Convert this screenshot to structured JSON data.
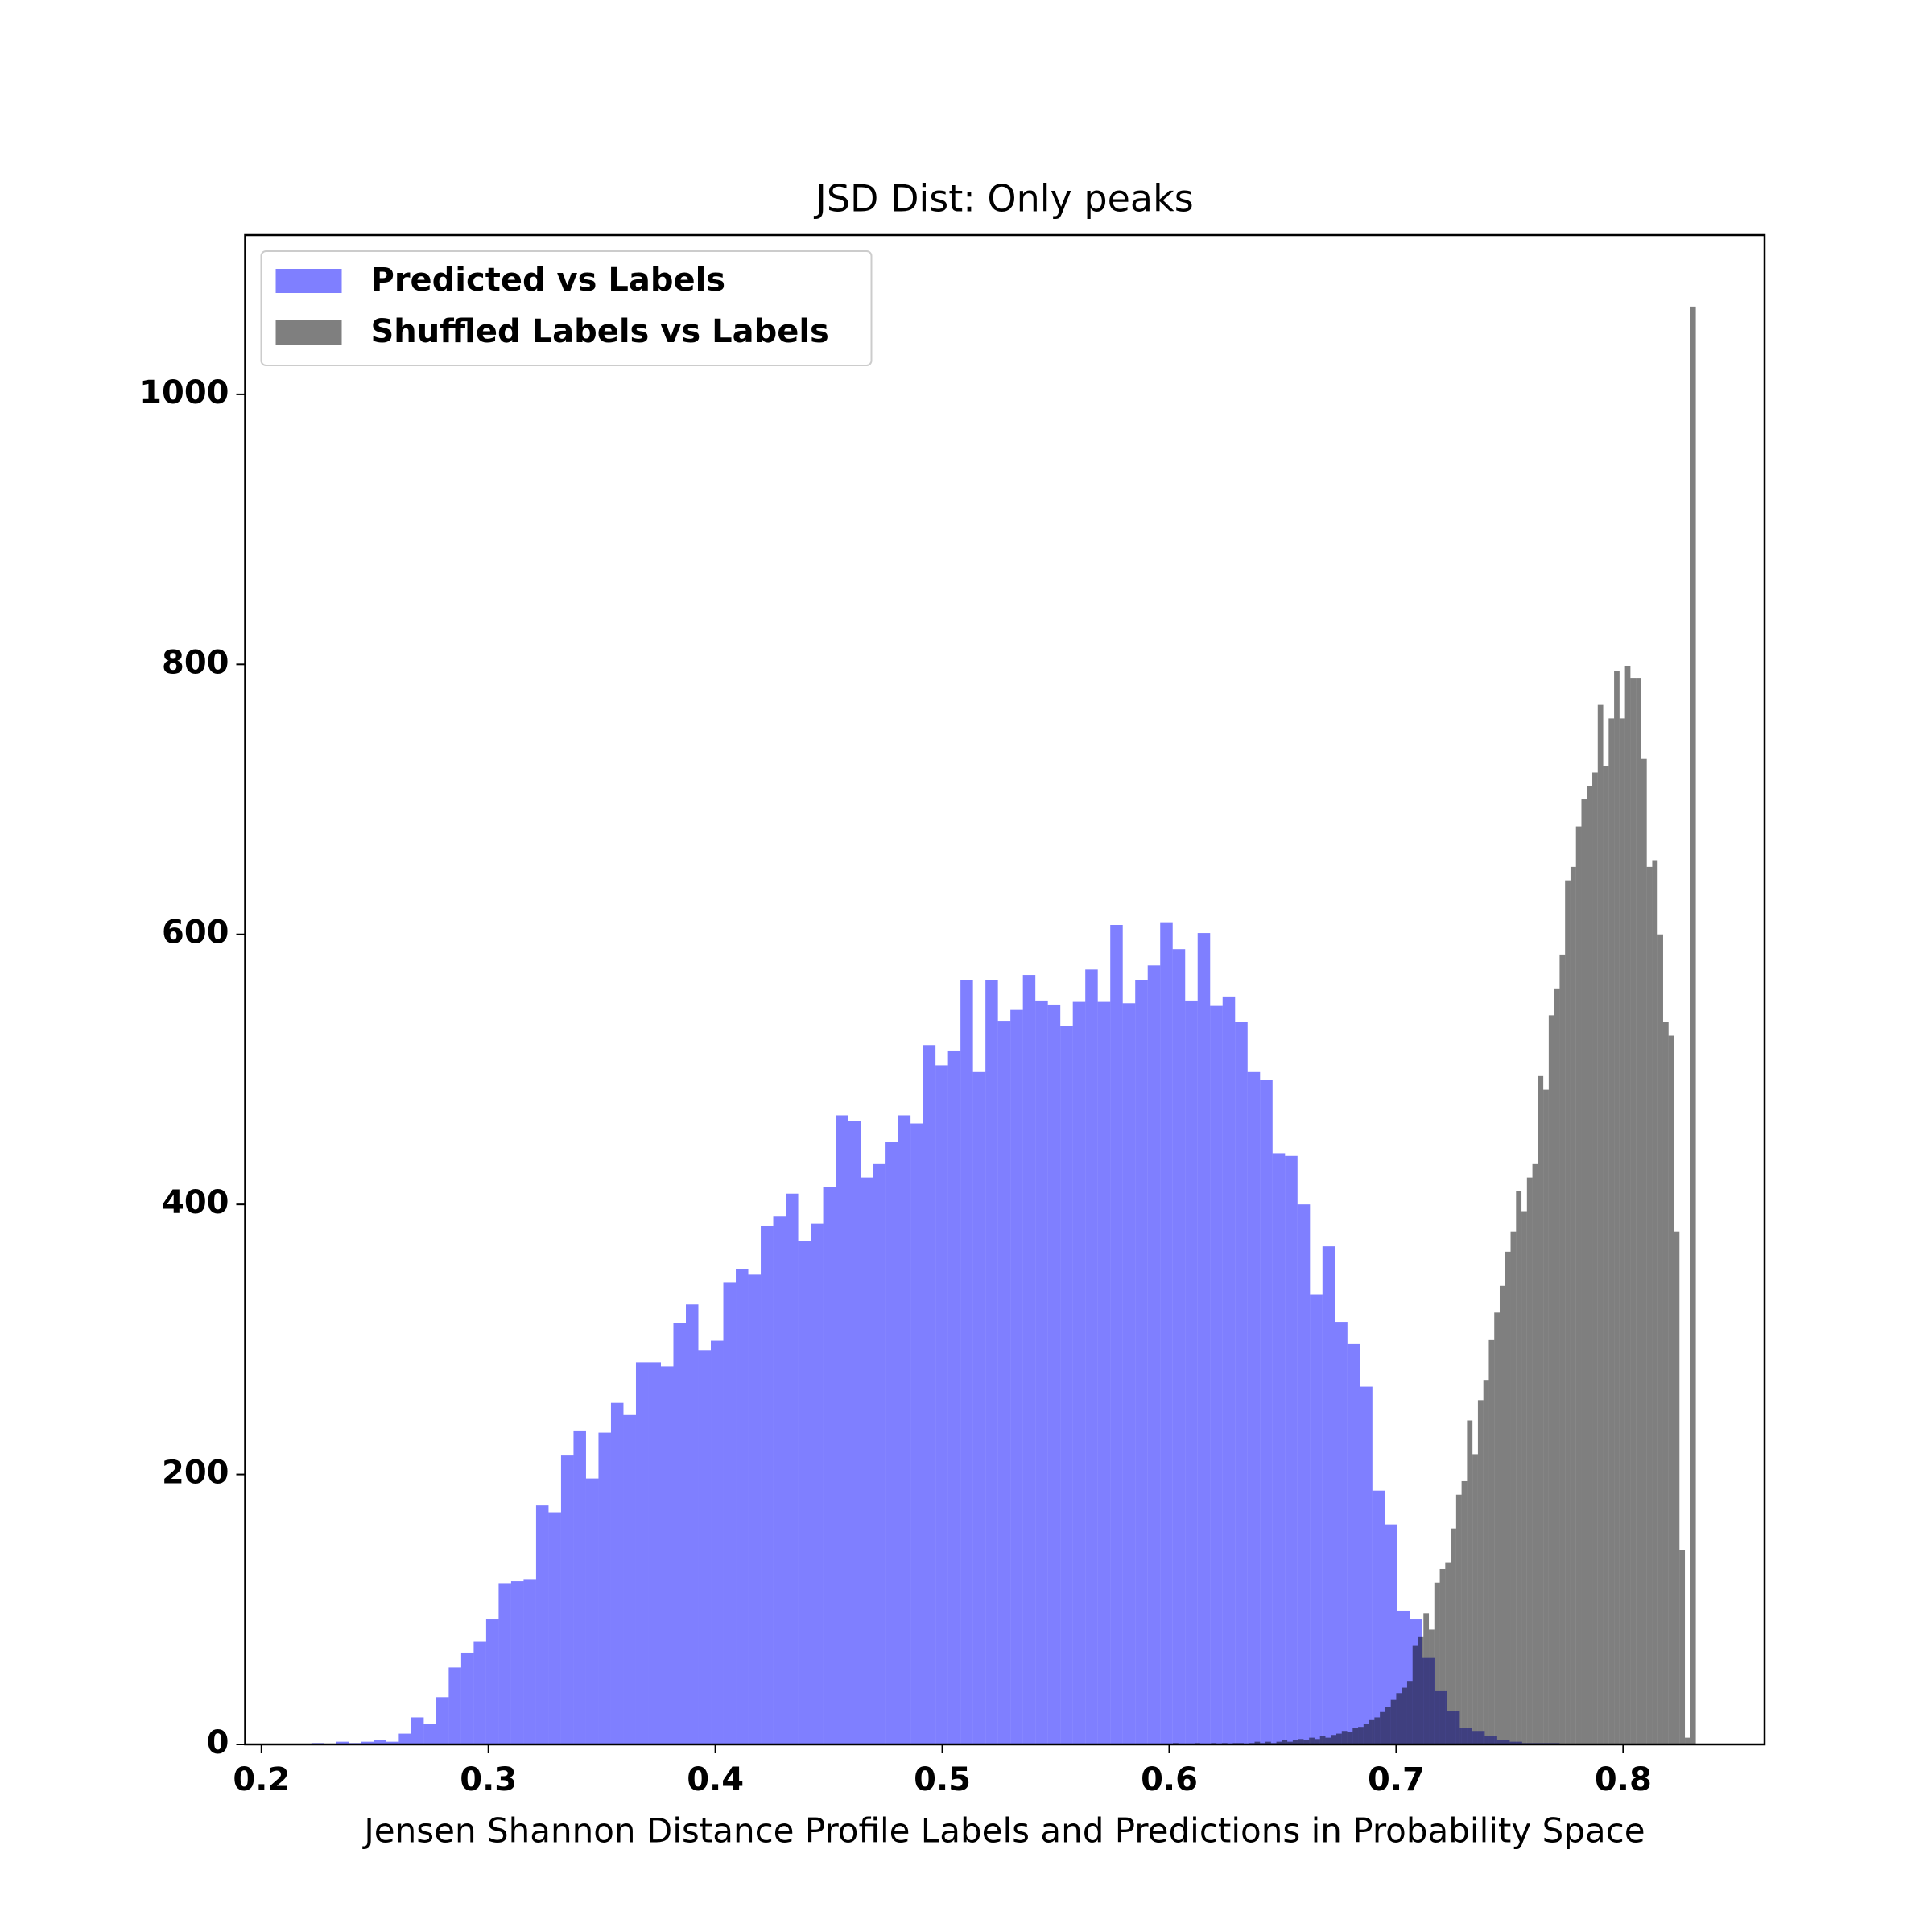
{
  "chart_data": {
    "type": "histogram",
    "title": "JSD Dist: Only peaks",
    "x_label": "Jensen Shannon Distance Profile Labels and Predictions in Probability Space",
    "xlim": [
      0.1928,
      0.8623
    ],
    "xticks": [
      0.2,
      0.3,
      0.4,
      0.5,
      0.6,
      0.7,
      0.8
    ],
    "ylim": [
      0,
      1118
    ],
    "yticks": [
      0,
      200,
      400,
      600,
      800,
      1000
    ],
    "legend": "upper left",
    "series": [
      {
        "name": "Predicted vs Labels",
        "color": "#0000ff",
        "alpha": 0.5,
        "bins": [
          0.222,
          0.2275,
          0.233,
          0.2385,
          0.244,
          0.2495,
          0.255,
          0.2605,
          0.266,
          0.2715,
          0.277,
          0.2825,
          0.288,
          0.2935,
          0.299,
          0.3045,
          0.31,
          0.3155,
          0.321,
          0.3265,
          0.332,
          0.3375,
          0.343,
          0.3485,
          0.354,
          0.3595,
          0.365,
          0.3705,
          0.376,
          0.3815,
          0.387,
          0.3925,
          0.398,
          0.4035,
          0.409,
          0.4145,
          0.42,
          0.4255,
          0.431,
          0.4365,
          0.442,
          0.4475,
          0.453,
          0.4585,
          0.464,
          0.4695,
          0.475,
          0.4805,
          0.486,
          0.4915,
          0.497,
          0.5025,
          0.508,
          0.5135,
          0.519,
          0.5245,
          0.53,
          0.5355,
          0.541,
          0.5465,
          0.552,
          0.5575,
          0.563,
          0.5685,
          0.574,
          0.5795,
          0.585,
          0.5905,
          0.596,
          0.6015,
          0.607,
          0.6125,
          0.618,
          0.6235,
          0.629,
          0.6345,
          0.64,
          0.6455,
          0.651,
          0.6565,
          0.662,
          0.6675,
          0.673,
          0.6785,
          0.684,
          0.6895,
          0.695,
          0.7005,
          0.706,
          0.7115,
          0.717,
          0.7225,
          0.728,
          0.7335,
          0.739,
          0.7445,
          0.75,
          0.7555,
          0.761,
          0.7665,
          0.772
        ],
        "values": [
          1,
          0,
          2,
          1,
          2,
          3,
          2,
          8,
          20,
          15,
          35,
          57,
          68,
          76,
          93,
          119,
          121,
          122,
          177,
          172,
          214,
          232,
          197,
          231,
          253,
          244,
          283,
          283,
          280,
          312,
          326,
          292,
          299,
          342,
          352,
          348,
          384,
          391,
          408,
          373,
          386,
          413,
          466,
          462,
          420,
          430,
          446,
          466,
          460,
          518,
          503,
          514,
          566,
          498,
          566,
          536,
          544,
          570,
          551,
          548,
          532,
          550,
          574,
          550,
          607,
          549,
          566,
          577,
          609,
          589,
          551,
          601,
          547,
          554,
          535,
          498,
          492,
          438,
          436,
          400,
          333,
          369,
          313,
          297,
          265,
          188,
          163,
          99,
          93,
          64,
          40,
          25,
          12,
          10,
          6,
          3,
          2,
          1,
          1,
          1
        ]
      },
      {
        "name": "Shuffled Labels vs Labels",
        "color": "#000000",
        "alpha": 0.5,
        "bins": [
          0.592,
          0.5944,
          0.5968,
          0.5992,
          0.6016,
          0.604,
          0.6064,
          0.6088,
          0.6112,
          0.6136,
          0.616,
          0.6184,
          0.6208,
          0.6232,
          0.6256,
          0.628,
          0.6304,
          0.6328,
          0.6352,
          0.6376,
          0.64,
          0.6424,
          0.6448,
          0.6472,
          0.6496,
          0.652,
          0.6544,
          0.6568,
          0.6592,
          0.6616,
          0.664,
          0.6664,
          0.6688,
          0.6712,
          0.6736,
          0.676,
          0.6784,
          0.6808,
          0.6832,
          0.6856,
          0.688,
          0.6904,
          0.6928,
          0.6952,
          0.6976,
          0.7,
          0.7024,
          0.7048,
          0.7072,
          0.7096,
          0.712,
          0.7144,
          0.7168,
          0.7192,
          0.7216,
          0.724,
          0.7264,
          0.7288,
          0.7312,
          0.7336,
          0.736,
          0.7384,
          0.7408,
          0.7432,
          0.7456,
          0.748,
          0.7504,
          0.7528,
          0.7552,
          0.7576,
          0.76,
          0.7624,
          0.7648,
          0.7672,
          0.7696,
          0.772,
          0.7744,
          0.7768,
          0.7792,
          0.7816,
          0.784,
          0.7864,
          0.7888,
          0.7912,
          0.7936,
          0.796,
          0.7984,
          0.8008,
          0.8032,
          0.8056,
          0.808,
          0.8104,
          0.8128,
          0.8152,
          0.8176,
          0.82,
          0.8224,
          0.8248,
          0.8272,
          0.8296,
          0.832
        ],
        "values": [
          0,
          0,
          0,
          0,
          1,
          0,
          0,
          0,
          1,
          0,
          0,
          1,
          0,
          1,
          0,
          1,
          1,
          0,
          1,
          2,
          1,
          2,
          1,
          2,
          3,
          2,
          3,
          4,
          3,
          5,
          4,
          6,
          5,
          7,
          8,
          10,
          9,
          12,
          13,
          15,
          18,
          20,
          24,
          28,
          33,
          38,
          42,
          47,
          73,
          80,
          97,
          85,
          120,
          130,
          135,
          160,
          185,
          195,
          240,
          215,
          255,
          270,
          300,
          320,
          340,
          365,
          380,
          410,
          395,
          420,
          430,
          495,
          485,
          540,
          560,
          585,
          640,
          650,
          680,
          700,
          710,
          720,
          770,
          725,
          760,
          795,
          760,
          799,
          790,
          790,
          730,
          650,
          655,
          600,
          535,
          525,
          380,
          144,
          5,
          1065
        ]
      }
    ]
  }
}
